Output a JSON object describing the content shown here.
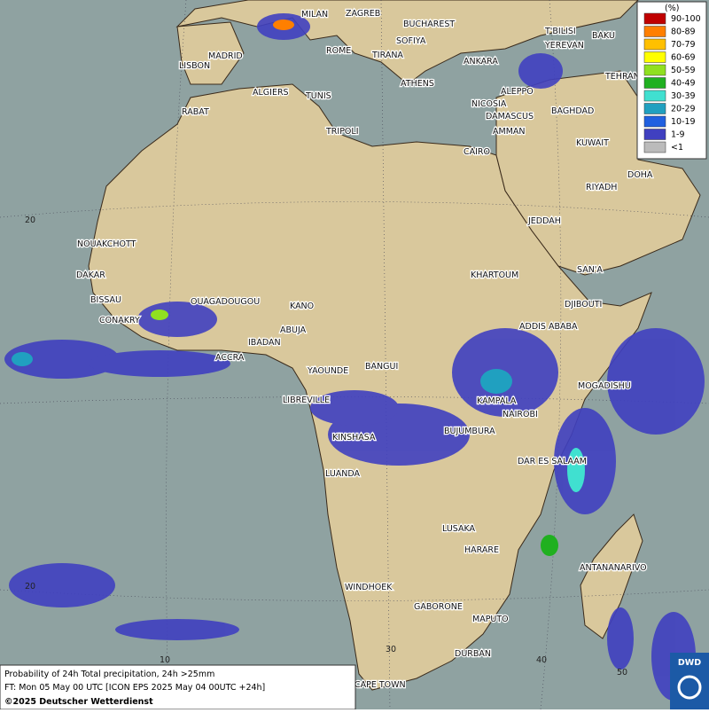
{
  "legend": {
    "title": "(%)",
    "items": [
      {
        "label": "90-100",
        "color": "#c00000"
      },
      {
        "label": "80-89",
        "color": "#ff7f00"
      },
      {
        "label": "70-79",
        "color": "#ffc000"
      },
      {
        "label": "60-69",
        "color": "#ffff00"
      },
      {
        "label": "50-59",
        "color": "#90e020"
      },
      {
        "label": "40-49",
        "color": "#20b020"
      },
      {
        "label": "30-39",
        "color": "#40e0d0"
      },
      {
        "label": "20-29",
        "color": "#20a0c0"
      },
      {
        "label": "10-19",
        "color": "#2060e0"
      },
      {
        "label": "1-9",
        "color": "#4040c0"
      },
      {
        "label": "<1",
        "color": "#bbbbbb"
      }
    ]
  },
  "cities": [
    "MILAN",
    "ZAGREB",
    "BUCHAREST",
    "SOFIYA",
    "T'BILISI",
    "BAKU",
    "LISBON",
    "MADRID",
    "ROME",
    "TIRANA",
    "ANKARA",
    "YEREVAN",
    "TEHRAN",
    "ATHENS",
    "ALGIERS",
    "TUNIS",
    "ALEPPO",
    "RABAT",
    "NICOSIA",
    "BAGHDAD",
    "DAMASCUS",
    "TRIPOLI",
    "AMMAN",
    "KUWAIT",
    "CAIRO",
    "DOHA",
    "RIYADH",
    "NOUAKCHOTT",
    "JEDDAH",
    "DAKAR",
    "KHARTOUM",
    "SAN'A",
    "BISSAU",
    "OUAGADOUGOU",
    "DJIBOUTI",
    "KANO",
    "CONAKRY",
    "ABUJA",
    "ADDIS ABABA",
    "IBADAN",
    "ACCRA",
    "YAOUNDE",
    "BANGUI",
    "MOGADISHU",
    "LIBREVILLE",
    "KAMPALA",
    "NAIROBI",
    "KINSHASA",
    "BUJUMBURA",
    "DAR ES SALAAM",
    "LUANDA",
    "LUSAKA",
    "HARARE",
    "ANTANANARIVO",
    "WINDHOEK",
    "GABORONE",
    "MAPUTO",
    "DURBAN",
    "CAPE TOWN"
  ],
  "grid_labels": [
    "20",
    "20",
    "10",
    "30",
    "40",
    "50"
  ],
  "footer": {
    "line1": "Probability of 24h Total precipitation, 24h >25mm",
    "line2": "FT: Mon 05 May 00 UTC [ICON EPS 2025 May 04 00UTC +24h]",
    "copyright": "©2025 Deutscher Wetterdienst"
  },
  "logo": "DWD"
}
